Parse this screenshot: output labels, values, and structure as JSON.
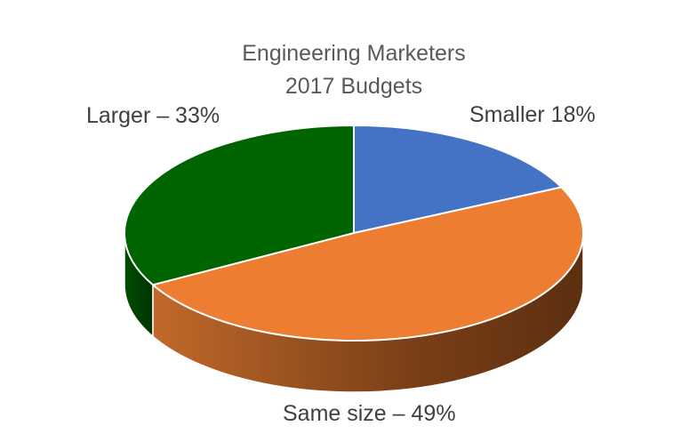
{
  "chart_data": {
    "type": "pie",
    "title": [
      "Engineering Marketers",
      "2017 Budgets"
    ],
    "slices": [
      {
        "label": "Smaller 18%",
        "value": 18,
        "color": "#4472C4",
        "side_color": "#2F5597"
      },
      {
        "label": "Same size – 49%",
        "value": 49,
        "color": "#ED7D31",
        "side_color": "#8B4513"
      },
      {
        "label": "Larger – 33%",
        "value": 33,
        "color": "#006400",
        "side_color": "#004000"
      }
    ],
    "legend": "none",
    "style": "3d-perspective"
  }
}
